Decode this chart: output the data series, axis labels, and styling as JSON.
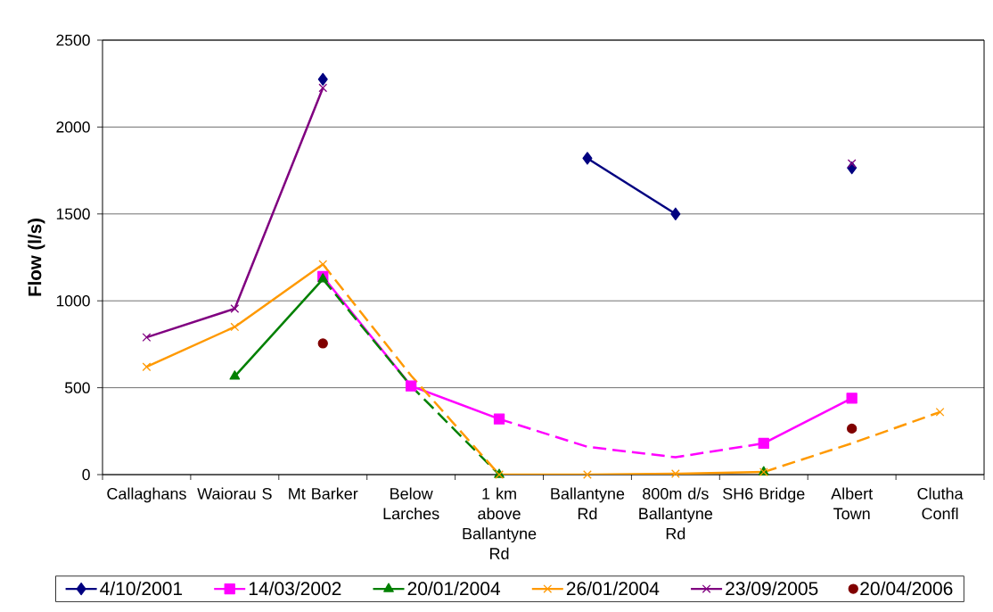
{
  "chart_data": {
    "type": "line",
    "ylabel": "Flow (l/s)",
    "categories": [
      "Callaghans",
      "Waiorau S",
      "Mt Barker",
      "Below Larches",
      "1 km above Ballantyne Rd",
      "Ballantyne Rd",
      "800m d/s Ballantyne Rd",
      "SH6 Bridge",
      "Albert Town",
      "Clutha Confl"
    ],
    "ylim": [
      0,
      2500
    ],
    "yticks": [
      0,
      500,
      1000,
      1500,
      2000,
      2500
    ],
    "grid": "y",
    "legend": "bottom",
    "series": [
      {
        "name": "4/10/2001",
        "color": "#000080",
        "marker": "diamond",
        "values": [
          null,
          null,
          2275,
          null,
          null,
          1820,
          1500,
          null,
          1765,
          null
        ]
      },
      {
        "color": "#ff00ff",
        "line_style": "dashed",
        "values": [
          null,
          null,
          null,
          null,
          320,
          160,
          100,
          180,
          null,
          null
        ]
      },
      {
        "name": "14/03/2002",
        "color": "#ff00ff",
        "marker": "square",
        "values": [
          null,
          null,
          1140,
          510,
          320,
          null,
          null,
          180,
          440,
          null
        ]
      },
      {
        "color": "#008000",
        "line_style": "dashed",
        "values": [
          null,
          null,
          1125,
          510,
          0,
          null,
          null,
          null,
          null,
          null
        ]
      },
      {
        "name": "20/01/2004",
        "color": "#008000",
        "marker": "triangle",
        "values": [
          null,
          565,
          1125,
          null,
          0,
          null,
          null,
          15,
          null,
          null
        ]
      },
      {
        "color": "#ff9900",
        "line_style": "dashed",
        "values": [
          null,
          null,
          1210,
          570,
          0,
          null,
          null,
          null,
          null,
          null
        ]
      },
      {
        "color": "#ff9900",
        "line_style": "dashed",
        "values": [
          null,
          null,
          null,
          null,
          null,
          null,
          null,
          15,
          180,
          360
        ]
      },
      {
        "name": "26/01/2004",
        "color": "#ff9900",
        "marker": "cross",
        "values": [
          620,
          850,
          1210,
          null,
          0,
          0,
          5,
          15,
          null,
          360
        ]
      },
      {
        "name": "23/09/2005",
        "color": "#800080",
        "marker": "cross",
        "values": [
          790,
          955,
          2225,
          null,
          null,
          null,
          null,
          null,
          1790,
          null
        ]
      },
      {
        "name": "20/04/2006",
        "type": "scatter",
        "color": "#800000",
        "marker": "circle",
        "values": [
          null,
          null,
          755,
          null,
          null,
          null,
          null,
          null,
          265,
          null
        ]
      }
    ]
  }
}
